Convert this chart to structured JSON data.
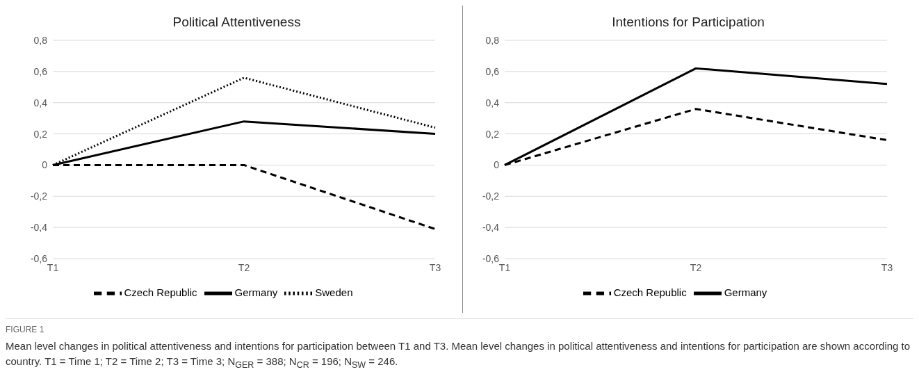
{
  "chart_data": [
    {
      "type": "line",
      "title": "Political Attentiveness",
      "categories": [
        "T1",
        "T2",
        "T3"
      ],
      "series": [
        {
          "name": "Germany",
          "color": "#000000",
          "line_style": "solid",
          "values": [
            0,
            0.28,
            0.2
          ]
        },
        {
          "name": "Czech Republic",
          "color": "#000000",
          "line_style": "dashed",
          "values": [
            0,
            0,
            -0.41
          ]
        },
        {
          "name": "Sweden",
          "color": "#000000",
          "line_style": "dotted",
          "values": [
            0,
            0.56,
            0.24
          ]
        }
      ],
      "ylim": [
        -0.6,
        0.8
      ],
      "yticks": [
        {
          "value": -0.6,
          "label": "-0,6"
        },
        {
          "value": -0.4,
          "label": "-0,4"
        },
        {
          "value": -0.2,
          "label": "-0,2"
        },
        0,
        {
          "value": 0.2,
          "label": "0,2"
        },
        {
          "value": 0.4,
          "label": "0,4"
        },
        {
          "value": 0.6,
          "label": "0,6"
        },
        {
          "value": 0.8,
          "label": "0,8"
        }
      ],
      "grid": "y",
      "legend": "bottom",
      "marker": "none",
      "annotations": [
        "FIGURE 1",
        "Mean level changes in political attentiveness and intentions for participation between T1 and T3. Mean level changes in political attentiveness and intentions for participation are shown according to country. T1 = Time 1; T2 = Time 2; T3 = Time 3; N$_{GER}$ = 388; N$_{CR}$ = 196; N$_{SW}$ = 246."
      ]
    },
    {
      "type": "line",
      "title": "Intentions for Participation",
      "categories": [
        "T1",
        "T2",
        "T3"
      ],
      "series": [
        {
          "name": "Germany",
          "color": "#000000",
          "line_style": "solid",
          "values": [
            0,
            0.62,
            0.52
          ]
        },
        {
          "name": "Czech Republic",
          "color": "#000000",
          "line_style": "dashed",
          "values": [
            0,
            0.36,
            0.16
          ]
        }
      ],
      "ylim": [
        -0.6,
        0.8
      ],
      "yticks": [
        {
          "value": -0.6,
          "label": "-0,6"
        },
        {
          "value": -0.4,
          "label": "-0,4"
        },
        {
          "value": -0.2,
          "label": "-0,2"
        },
        0,
        {
          "value": 0.2,
          "label": "0,2"
        },
        {
          "value": 0.4,
          "label": "0,4"
        },
        {
          "value": 0.6,
          "label": "0,6"
        },
        {
          "value": 0.8,
          "label": "0,8"
        }
      ],
      "grid": "y",
      "legend": "bottom",
      "marker": "none"
    }
  ]
}
